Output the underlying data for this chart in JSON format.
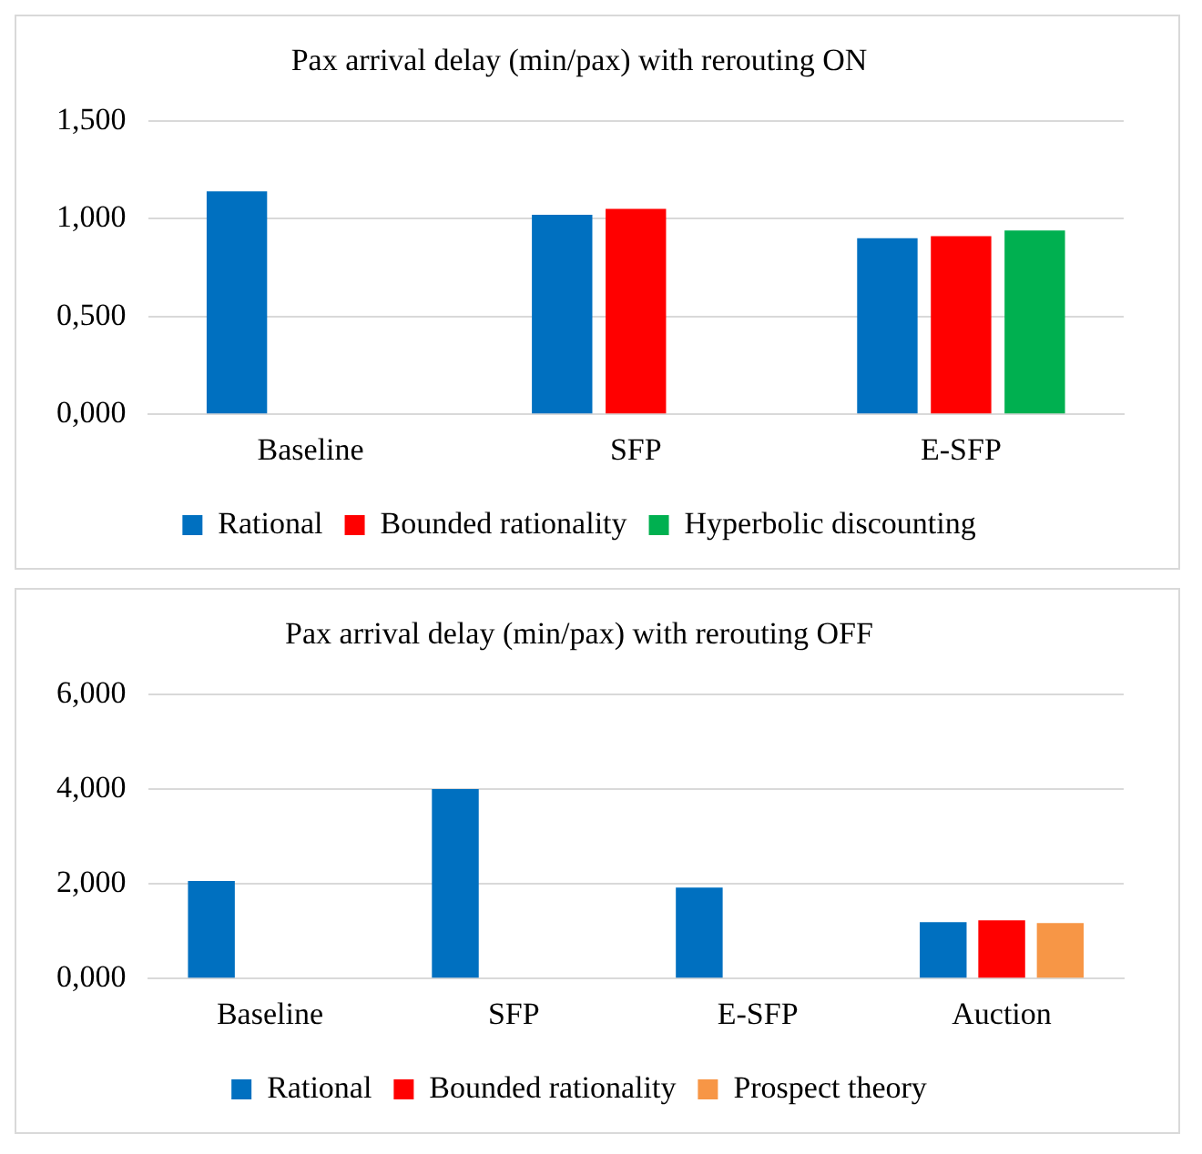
{
  "chart_data": [
    {
      "type": "bar",
      "title": "Pax arrival delay (min/pax) with rerouting ON",
      "categories": [
        "Baseline",
        "SFP",
        "E-SFP"
      ],
      "series": [
        {
          "name": "Rational",
          "color": "#0070c0",
          "values": [
            1.14,
            1.02,
            0.9
          ]
        },
        {
          "name": "Bounded rationality",
          "color": "#ff0000",
          "values": [
            null,
            1.05,
            0.91
          ]
        },
        {
          "name": "Hyperbolic discounting",
          "color": "#00b050",
          "values": [
            null,
            null,
            0.94
          ]
        }
      ],
      "ylim": [
        0,
        1.5
      ],
      "yticks": [
        {
          "value": 0,
          "label": "0,000"
        },
        {
          "value": 0.5,
          "label": "0,500"
        },
        {
          "value": 1,
          "label": "1,000"
        },
        {
          "value": 1.5,
          "label": "1,500"
        }
      ],
      "grid": "y",
      "legend": "bottom"
    },
    {
      "type": "bar",
      "title": "Pax arrival delay (min/pax) with rerouting OFF",
      "categories": [
        "Baseline",
        "SFP",
        "E-SFP",
        "Auction"
      ],
      "series": [
        {
          "name": "Rational",
          "color": "#0070c0",
          "values": [
            2.06,
            4.0,
            1.92,
            1.19
          ]
        },
        {
          "name": "Bounded rationality",
          "color": "#ff0000",
          "values": [
            null,
            null,
            null,
            1.23
          ]
        },
        {
          "name": "Prospect theory",
          "color": "#f79646",
          "values": [
            null,
            null,
            null,
            1.17
          ]
        }
      ],
      "ylim": [
        0,
        6
      ],
      "yticks": [
        {
          "value": 0,
          "label": "0,000"
        },
        {
          "value": 2,
          "label": "2,000"
        },
        {
          "value": 4,
          "label": "4,000"
        },
        {
          "value": 6,
          "label": "6,000"
        }
      ],
      "grid": "y",
      "legend": "bottom"
    }
  ]
}
